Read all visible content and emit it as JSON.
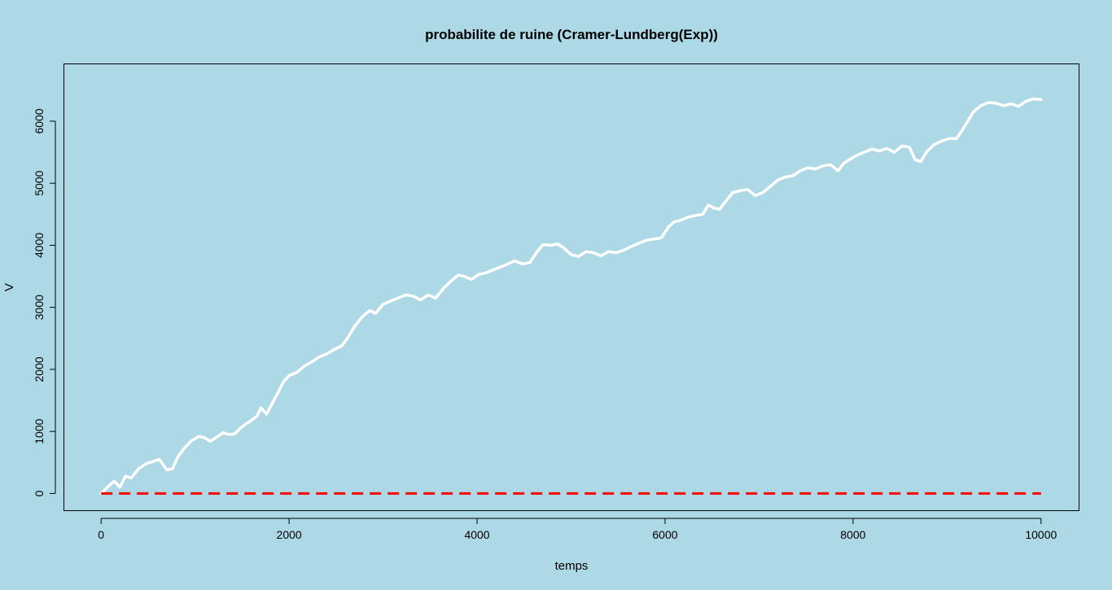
{
  "chart_data": {
    "type": "line",
    "title": "probabilite de ruine (Cramer-Lundberg(Exp))",
    "xlabel": "temps",
    "ylabel": "V",
    "xlim": [
      -400,
      10400
    ],
    "ylim": [
      -270,
      6930
    ],
    "xticks": [
      0,
      2000,
      4000,
      6000,
      8000,
      10000
    ],
    "yticks": [
      0,
      1000,
      2000,
      3000,
      4000,
      5000,
      6000
    ],
    "grid": false,
    "colors": {
      "background": "#add8e6",
      "series": "#ffffff",
      "threshold": "#ff0000",
      "axis": "#000000"
    },
    "series": [
      {
        "style": "solid",
        "x": [
          0,
          80,
          140,
          200,
          260,
          320,
          400,
          480,
          560,
          620,
          700,
          760,
          820,
          880,
          960,
          1040,
          1100,
          1160,
          1220,
          1300,
          1360,
          1420,
          1480,
          1540,
          1600,
          1660,
          1700,
          1760,
          1820,
          1880,
          1940,
          2000,
          2080,
          2160,
          2240,
          2320,
          2400,
          2480,
          2560,
          2620,
          2700,
          2780,
          2860,
          2920,
          3000,
          3080,
          3160,
          3240,
          3320,
          3400,
          3480,
          3560,
          3640,
          3720,
          3800,
          3860,
          3940,
          4020,
          4100,
          4200,
          4300,
          4400,
          4480,
          4560,
          4640,
          4700,
          4780,
          4860,
          4920,
          5000,
          5080,
          5160,
          5240,
          5320,
          5400,
          5480,
          5560,
          5640,
          5720,
          5800,
          5880,
          5960,
          6040,
          6100,
          6160,
          6240,
          6320,
          6400,
          6460,
          6520,
          6580,
          6640,
          6720,
          6800,
          6880,
          6960,
          7040,
          7120,
          7200,
          7280,
          7360,
          7440,
          7520,
          7600,
          7680,
          7760,
          7840,
          7900,
          7960,
          8040,
          8120,
          8200,
          8280,
          8360,
          8440,
          8520,
          8600,
          8660,
          8720,
          8780,
          8860,
          8940,
          9020,
          9100,
          9160,
          9220,
          9280,
          9360,
          9440,
          9520,
          9600,
          9680,
          9760,
          9840,
          9920,
          10000
        ],
        "y": [
          0,
          120,
          200,
          100,
          280,
          250,
          400,
          480,
          520,
          550,
          380,
          400,
          600,
          720,
          850,
          920,
          900,
          840,
          900,
          980,
          950,
          960,
          1050,
          1120,
          1180,
          1250,
          1380,
          1280,
          1450,
          1620,
          1800,
          1900,
          1950,
          2050,
          2120,
          2200,
          2250,
          2320,
          2380,
          2500,
          2700,
          2850,
          2950,
          2900,
          3050,
          3100,
          3150,
          3200,
          3180,
          3120,
          3200,
          3150,
          3300,
          3420,
          3520,
          3500,
          3450,
          3530,
          3560,
          3620,
          3680,
          3750,
          3700,
          3720,
          3900,
          4010,
          4000,
          4020,
          3960,
          3850,
          3820,
          3900,
          3880,
          3830,
          3900,
          3880,
          3920,
          3980,
          4030,
          4080,
          4100,
          4120,
          4300,
          4380,
          4400,
          4450,
          4480,
          4500,
          4650,
          4600,
          4580,
          4700,
          4850,
          4880,
          4900,
          4800,
          4850,
          4950,
          5050,
          5100,
          5120,
          5200,
          5250,
          5230,
          5280,
          5300,
          5200,
          5320,
          5380,
          5450,
          5500,
          5550,
          5520,
          5560,
          5500,
          5600,
          5580,
          5380,
          5350,
          5500,
          5620,
          5680,
          5720,
          5720,
          5850,
          6000,
          6150,
          6250,
          6300,
          6290,
          6250,
          6280,
          6240,
          6320,
          6360,
          6350
        ]
      },
      {
        "style": "dashed",
        "x": [
          0,
          10000
        ],
        "y": [
          0,
          0
        ]
      }
    ]
  }
}
